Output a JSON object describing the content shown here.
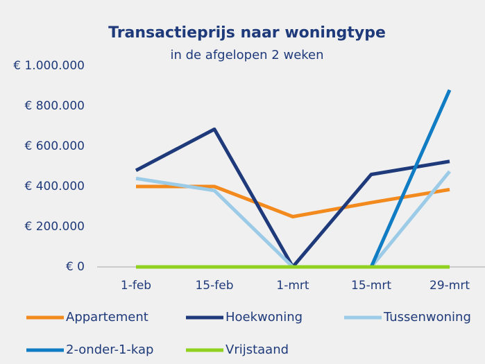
{
  "chart_data": {
    "type": "line",
    "title": "Transactieprijs naar woningtype",
    "subtitle": "in de afgelopen 2 weken",
    "categories": [
      "1-feb",
      "15-feb",
      "1-mrt",
      "15-mrt",
      "29-mrt"
    ],
    "series": [
      {
        "name": "Appartement",
        "color": "#f28a1e",
        "values": [
          400000,
          400000,
          250000,
          320000,
          385000
        ]
      },
      {
        "name": "Hoekwoning",
        "color": "#1f3a7a",
        "values": [
          480000,
          685000,
          0,
          460000,
          525000
        ]
      },
      {
        "name": "Tussenwoning",
        "color": "#9ccbe8",
        "values": [
          440000,
          380000,
          0,
          0,
          475000
        ]
      },
      {
        "name": "2-onder-1-kap",
        "color": "#0f7cc4",
        "values": [
          null,
          null,
          null,
          0,
          880000
        ]
      },
      {
        "name": "Vrijstaand",
        "color": "#8fd11e",
        "values": [
          0,
          0,
          0,
          0,
          0
        ]
      }
    ],
    "ylim": [
      0,
      1000000
    ],
    "yticks": [
      {
        "value": 0,
        "label": "€ 0"
      },
      {
        "value": 200000,
        "label": "€ 200.000"
      },
      {
        "value": 400000,
        "label": "€ 400.000"
      },
      {
        "value": 600000,
        "label": "€ 600.000"
      },
      {
        "value": 800000,
        "label": "€ 800.000"
      },
      {
        "value": 1000000,
        "label": "€ 1.000.000"
      }
    ],
    "grid": false,
    "legend": "bottom"
  }
}
